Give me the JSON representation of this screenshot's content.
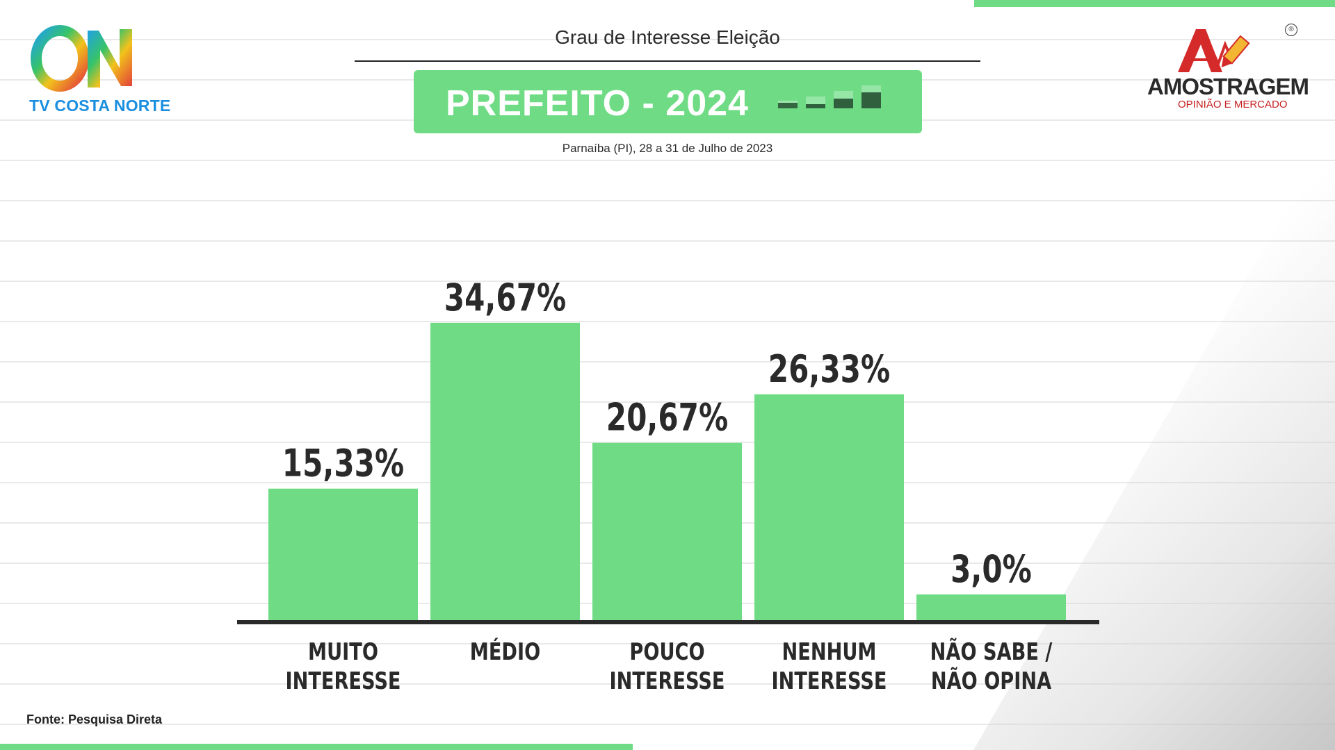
{
  "header": {
    "title": "Grau de Interesse Eleição",
    "banner": "PREFEITO - 2024",
    "subtitle": "Parnaíba (PI), 28 a 31 de Julho de 2023"
  },
  "logos": {
    "left_text": "TV COSTA NORTE",
    "right_name": "AMOSTRAGEM",
    "right_sub": "OPINIÃO E MERCADO",
    "right_registered": "®"
  },
  "footer": {
    "source": "Fonte: Pesquisa Direta"
  },
  "colors": {
    "bar": "#6fdc85",
    "accent": "#6fdc85",
    "text": "#2a2a2a"
  },
  "chart_data": {
    "type": "bar",
    "categories": [
      [
        "MUITO",
        "INTERESSE"
      ],
      [
        "MÉDIO"
      ],
      [
        "POUCO",
        "INTERESSE"
      ],
      [
        "NENHUM",
        "INTERESSE"
      ],
      [
        "NÃO SABE /",
        "NÃO OPINA"
      ]
    ],
    "values": [
      15.33,
      34.67,
      20.67,
      26.33,
      3.0
    ],
    "value_labels": [
      "15,33%",
      "34,67%",
      "20,67%",
      "26,33%",
      "3,0%"
    ],
    "ylim": [
      0,
      40
    ],
    "grid": false
  }
}
